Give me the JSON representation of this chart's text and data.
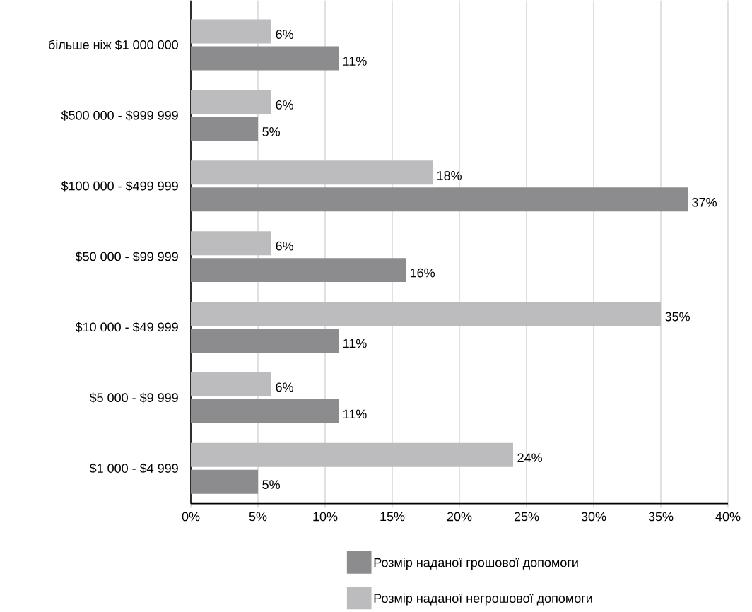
{
  "chart_data": {
    "type": "bar",
    "orientation": "horizontal",
    "categories": [
      "більше ніж $1 000 000",
      "$500 000 - $999 999",
      "$100 000 - $499 999",
      "$50 000 - $99 999",
      "$10 000 - $49 999",
      "$5 000 - $9 999",
      "$1 000 - $4 999"
    ],
    "series": [
      {
        "name": "Розмір наданої грошової допомоги",
        "color": "#8c8c8e",
        "values": [
          11,
          5,
          37,
          16,
          11,
          11,
          5
        ],
        "value_labels": [
          "11%",
          "5%",
          "37%",
          "16%",
          "11%",
          "11%",
          "5%"
        ]
      },
      {
        "name": "Розмір наданої негрошової допомоги",
        "color": "#bcbcbe",
        "values": [
          6,
          6,
          18,
          6,
          35,
          6,
          24
        ],
        "value_labels": [
          "6%",
          "6%",
          "18%",
          "6%",
          "35%",
          "6%",
          "24%"
        ]
      }
    ],
    "xlim": [
      0,
      40
    ],
    "xticks": [
      {
        "value": 0,
        "label": "0%"
      },
      {
        "value": 5,
        "label": "5%"
      },
      {
        "value": 10,
        "label": "10%"
      },
      {
        "value": 15,
        "label": "15%"
      },
      {
        "value": 20,
        "label": "20%"
      },
      {
        "value": 25,
        "label": "25%"
      },
      {
        "value": 30,
        "label": "30%"
      },
      {
        "value": 35,
        "label": "35%"
      },
      {
        "value": 40,
        "label": "40%"
      }
    ],
    "grid": "x",
    "legend": "bottom"
  }
}
